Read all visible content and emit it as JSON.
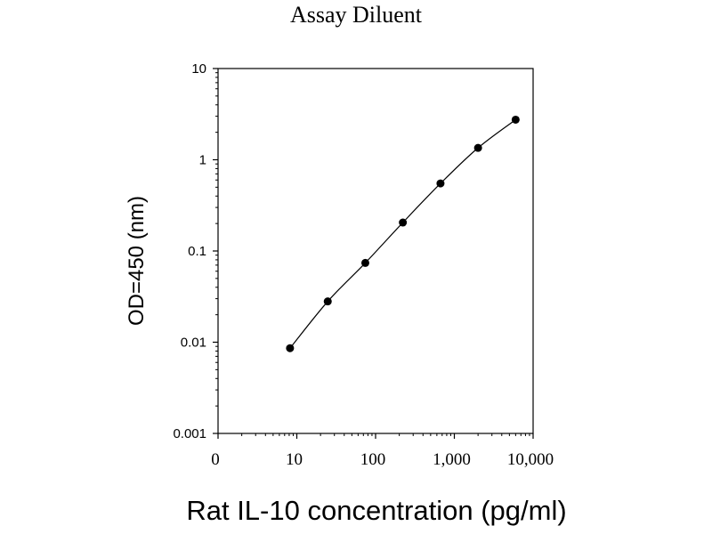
{
  "chart_data": {
    "type": "line",
    "title": "Assay Diluent",
    "xlabel": "Rat IL-10 concentration (pg/ml)",
    "ylabel": "OD=450 (nm)",
    "xscale": "log",
    "yscale": "log",
    "xlim": [
      1,
      10000
    ],
    "ylim": [
      0.001,
      10
    ],
    "x_ticks": [
      {
        "value": 1,
        "label": "0"
      },
      {
        "value": 10,
        "label": "10"
      },
      {
        "value": 100,
        "label": "100"
      },
      {
        "value": 1000,
        "label": "1,000"
      },
      {
        "value": 10000,
        "label": "10,000"
      }
    ],
    "y_ticks": [
      {
        "value": 0.001,
        "label": "0.001"
      },
      {
        "value": 0.01,
        "label": "0.01"
      },
      {
        "value": 0.1,
        "label": "0.1"
      },
      {
        "value": 1,
        "label": "1"
      },
      {
        "value": 10,
        "label": "10"
      }
    ],
    "grid": false,
    "series": [
      {
        "x": [
          8.2,
          24.7,
          74.1,
          222,
          667,
          2000,
          6000
        ],
        "y": [
          0.0086,
          0.028,
          0.074,
          0.205,
          0.55,
          1.35,
          2.75
        ],
        "color": "#000000",
        "marker": "circle"
      }
    ]
  }
}
